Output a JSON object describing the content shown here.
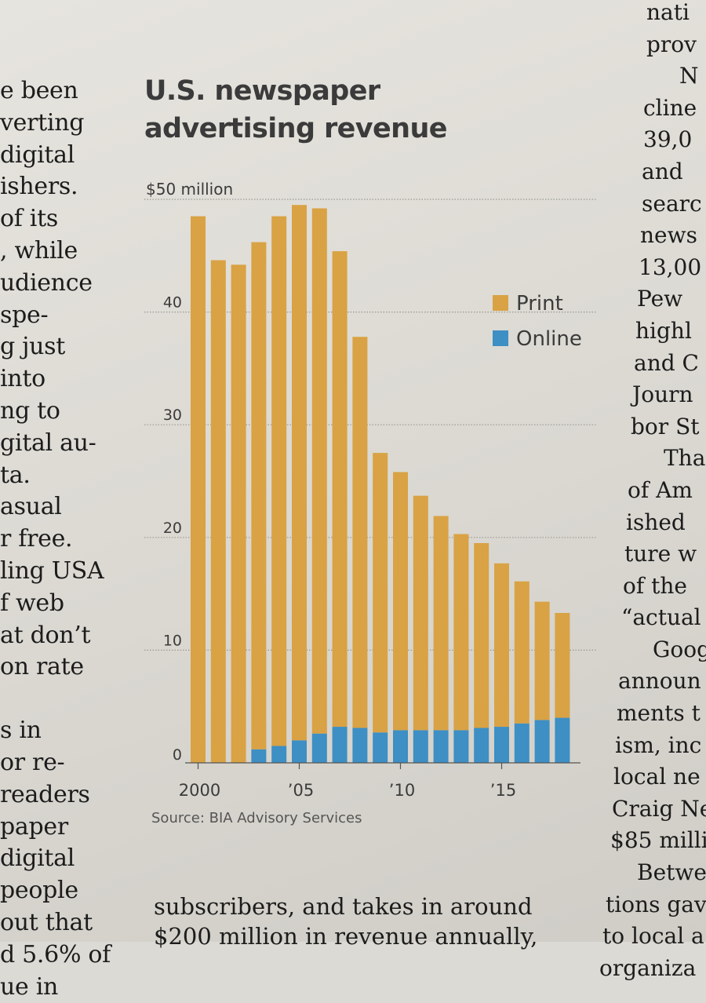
{
  "article": {
    "left_column": [
      "e been",
      "verting",
      "digital",
      "ishers.",
      "of its",
      ", while",
      "udience",
      "spe-",
      "g just",
      "into",
      "ng to",
      "gital au-",
      "ta.",
      "asual",
      "r free.",
      "ling USA",
      "f web",
      "at don’t",
      "on rate"
    ],
    "left_column_after_break": [
      "s in",
      "or re-",
      "readers",
      "paper",
      "digital",
      "people",
      "out that",
      "d 5.6% of",
      "ue in"
    ],
    "right_column": [
      "nati",
      "prov",
      "N",
      "cline",
      "39,0",
      "and",
      "searc",
      "news",
      "13,00",
      "Pew",
      "highl",
      "and C",
      "Journ",
      "bor St",
      "Tha",
      "of Am",
      "ished",
      "ture w",
      "of the",
      "“actual",
      "Goog",
      "announ",
      "ments t",
      "ism, inc",
      "local ne",
      "Craig Ne",
      "$85 milli",
      "Betwe",
      "tions gav",
      "to local a",
      "organiza"
    ],
    "bottom_column": [
      "subscribers, and takes in around",
      "$200 million in revenue annually,"
    ]
  },
  "chart_data": {
    "type": "bar",
    "stacked": true,
    "title": "U.S. newspaper advertising revenue",
    "ylabel": "$50 million",
    "ylim": [
      0,
      50
    ],
    "y_ticks": [
      0,
      10,
      20,
      30,
      40
    ],
    "y_tick_labels": [
      "0",
      "10",
      "20",
      "30",
      "40"
    ],
    "top_tick_label": "$50 million",
    "x": [
      2000,
      2001,
      2002,
      2003,
      2004,
      2005,
      2006,
      2007,
      2008,
      2009,
      2010,
      2011,
      2012,
      2013,
      2014,
      2015,
      2016,
      2017,
      2018
    ],
    "x_tick_labels": [
      {
        "year": 2000,
        "label": "2000"
      },
      {
        "year": 2005,
        "label": "’05"
      },
      {
        "year": 2010,
        "label": "’10"
      },
      {
        "year": 2015,
        "label": "’15"
      }
    ],
    "series": [
      {
        "name": "Online",
        "color": "#3d8fc4",
        "values": [
          0,
          0,
          0,
          1.2,
          1.5,
          2.0,
          2.6,
          3.2,
          3.1,
          2.7,
          2.9,
          2.9,
          2.9,
          2.9,
          3.1,
          3.2,
          3.5,
          3.8,
          4.0
        ]
      },
      {
        "name": "Print",
        "color": "#d9a244",
        "values": [
          48.5,
          44.6,
          44.2,
          45.0,
          47.0,
          47.5,
          46.6,
          42.2,
          34.7,
          24.8,
          22.9,
          20.8,
          19.0,
          17.4,
          16.4,
          14.5,
          12.6,
          10.5,
          9.3
        ]
      }
    ],
    "legend": {
      "position": "right",
      "order": [
        "Print",
        "Online"
      ]
    },
    "source": "Source: BIA Advisory Services",
    "colors": {
      "grid": "#9a9892",
      "axis": "#555555",
      "text": "#3b3b3b"
    }
  }
}
